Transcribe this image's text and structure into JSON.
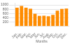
{
  "chart_data": {
    "type": "bar",
    "categories": [
      "Jan.",
      "Feb.",
      "Mar.",
      "Apr.",
      "May",
      "Jun.",
      "Jul.",
      "Aug.",
      "Sep.",
      "Oct.",
      "Nov.",
      "Dec."
    ],
    "values": [
      870,
      950,
      870,
      820,
      580,
      480,
      490,
      470,
      530,
      730,
      810,
      830
    ],
    "color": "#FF8C00",
    "xlabel": "Months",
    "ylim": [
      0,
      1100
    ],
    "yticks": [
      200,
      400,
      600,
      800,
      1000
    ],
    "grid": true
  }
}
